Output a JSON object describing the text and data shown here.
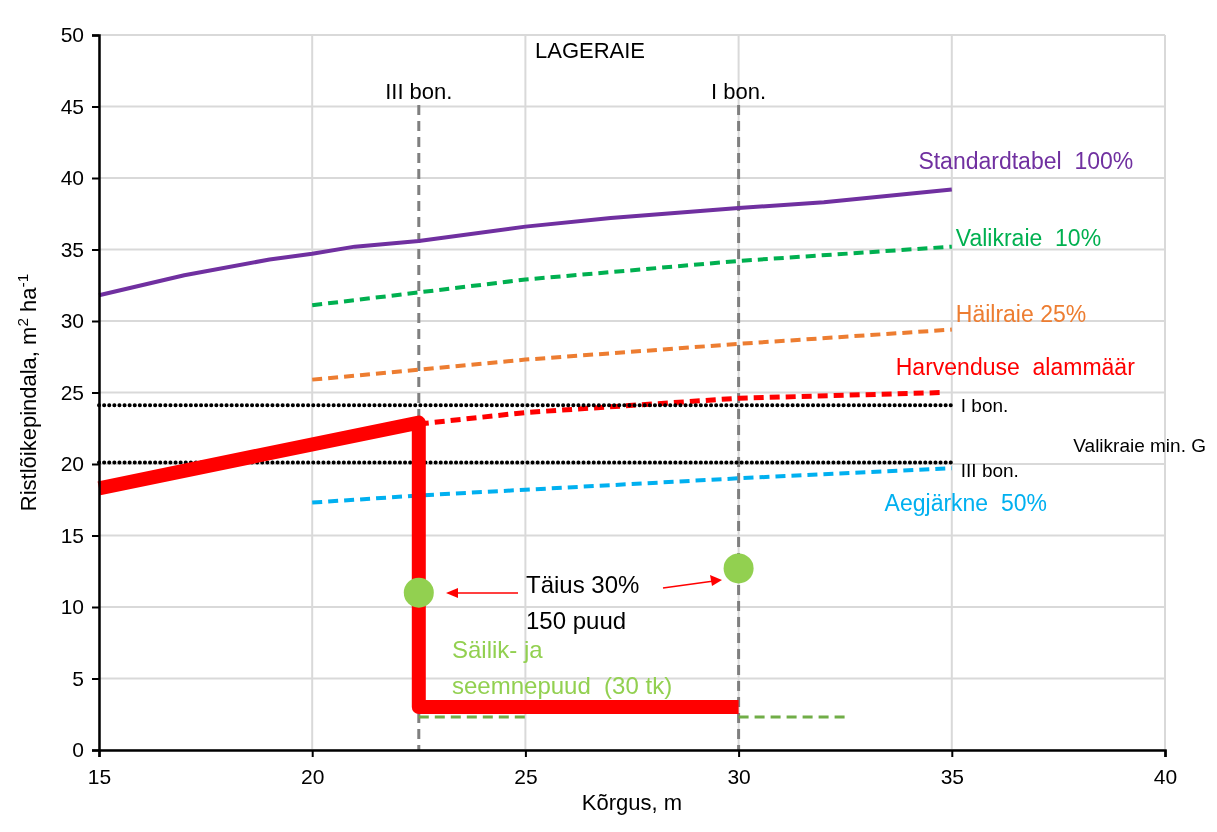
{
  "chart_data": {
    "type": "line",
    "xlabel": "Kõrgus, m",
    "ylabel": "Ristlõikepindala, m$^{2}$ ha$^{-1}$",
    "xlim": [
      15,
      40
    ],
    "xticks": [
      15,
      20,
      25,
      30,
      35,
      40
    ],
    "ylim": [
      0,
      50
    ],
    "yticks": [
      0,
      5,
      10,
      15,
      20,
      25,
      30,
      35,
      40,
      45,
      50
    ],
    "grid": true,
    "series": [
      {
        "name": "Standardtabel  100%",
        "color": "#7030a0",
        "line_style": "solid",
        "x": [
          15,
          17,
          19,
          20,
          21,
          22.5,
          25,
          27,
          30,
          32,
          35
        ],
        "values": [
          31.8,
          33.2,
          34.3,
          34.7,
          35.2,
          35.6,
          36.6,
          37.2,
          37.9,
          38.3,
          39.2
        ]
      },
      {
        "name": "Valikraie  10%",
        "color": "#00b050",
        "line_style": "dashed",
        "x": [
          20,
          22.5,
          25,
          30,
          35
        ],
        "values": [
          31.1,
          32.0,
          32.9,
          34.2,
          35.2
        ]
      },
      {
        "name": "Häilraie 25%",
        "color": "#ed7d31",
        "line_style": "dashed",
        "x": [
          20,
          22.5,
          25,
          30,
          35
        ],
        "values": [
          25.9,
          26.6,
          27.3,
          28.4,
          29.4
        ]
      },
      {
        "name": "Harvenduse  alammäär",
        "color": "#ff0000",
        "line_style": "dashed",
        "x": [
          22.5,
          25,
          30,
          34.8
        ],
        "values": [
          22.8,
          23.6,
          24.6,
          25.0
        ]
      },
      {
        "name": "Aegjärkne  50%",
        "color": "#00b0f0",
        "line_style": "dashed",
        "x": [
          20,
          22.5,
          25,
          30,
          35
        ],
        "values": [
          17.3,
          17.8,
          18.2,
          19.0,
          19.7
        ]
      },
      {
        "name": "I bon.",
        "color": "#000000",
        "line_style": "dotted",
        "x": [
          15,
          35
        ],
        "values": [
          24.1,
          24.1
        ]
      },
      {
        "name": "III bon.",
        "color": "#000000",
        "line_style": "dotted",
        "x": [
          15,
          35
        ],
        "values": [
          20.1,
          20.1
        ]
      },
      {
        "color": "#ff0000",
        "line_style": "solid",
        "x": [
          15,
          22.5,
          22.5,
          30
        ],
        "values": [
          18.3,
          22.9,
          3.0,
          3.0
        ]
      },
      {
        "color": "#70ad47",
        "line_style": "dashed",
        "x": [
          22.5,
          25,
          27.5,
          30,
          32.5
        ],
        "values": [
          2.3,
          2.3,
          null,
          2.3,
          2.3
        ]
      },
      {
        "type": "scatter",
        "color": "#92d050",
        "marker": "circle",
        "x": [
          22.5,
          30
        ],
        "values": [
          11.0,
          12.7
        ]
      }
    ],
    "ref_lines": [
      {
        "axis": "x",
        "value": 22.5,
        "label": "III bon.",
        "color": "#7f7f7f",
        "line_style": "dashed"
      },
      {
        "axis": "x",
        "value": 30,
        "label": "I bon.",
        "color": "#7f7f7f",
        "line_style": "dashed"
      }
    ],
    "annotations": [
      "LAGERAIE",
      "Valikraie min. G",
      "Täius 30%\n150 puud",
      "Säilik- ja\nseemnepuud  (30 tk)"
    ]
  }
}
